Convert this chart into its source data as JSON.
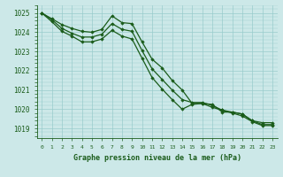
{
  "title": "Graphe pression niveau de la mer (hPa)",
  "bg_color": "#cce8e8",
  "grid_color": "#99cccc",
  "line_color": "#1a5c1a",
  "marker_color": "#1a5c1a",
  "x_ticks": [
    0,
    1,
    2,
    3,
    4,
    5,
    6,
    7,
    8,
    9,
    10,
    11,
    12,
    13,
    14,
    15,
    16,
    17,
    18,
    19,
    20,
    21,
    22,
    23
  ],
  "ylim": [
    1018.5,
    1025.4
  ],
  "xlim": [
    -0.5,
    23.5
  ],
  "yticks": [
    1019,
    1020,
    1021,
    1022,
    1023,
    1024,
    1025
  ],
  "series": [
    [
      1025.0,
      1024.7,
      1024.4,
      1024.2,
      1024.05,
      1024.0,
      1024.15,
      1024.85,
      1024.5,
      1024.45,
      1023.5,
      1022.6,
      1022.15,
      1021.5,
      1021.0,
      1020.3,
      1020.3,
      1020.25,
      1019.85,
      1019.85,
      1019.75,
      1019.4,
      1019.3,
      1019.3
    ],
    [
      1025.0,
      1024.65,
      1024.2,
      1023.95,
      1023.75,
      1023.75,
      1023.9,
      1024.45,
      1024.15,
      1024.05,
      1023.05,
      1022.1,
      1021.55,
      1021.0,
      1020.5,
      1020.35,
      1020.35,
      1020.2,
      1019.95,
      1019.85,
      1019.75,
      1019.4,
      1019.2,
      1019.2
    ],
    [
      1025.0,
      1024.55,
      1024.05,
      1023.8,
      1023.5,
      1023.5,
      1023.65,
      1024.1,
      1023.8,
      1023.65,
      1022.65,
      1021.65,
      1021.05,
      1020.5,
      1020.0,
      1020.25,
      1020.3,
      1020.1,
      1019.95,
      1019.8,
      1019.65,
      1019.35,
      1019.15,
      1019.15
    ]
  ]
}
